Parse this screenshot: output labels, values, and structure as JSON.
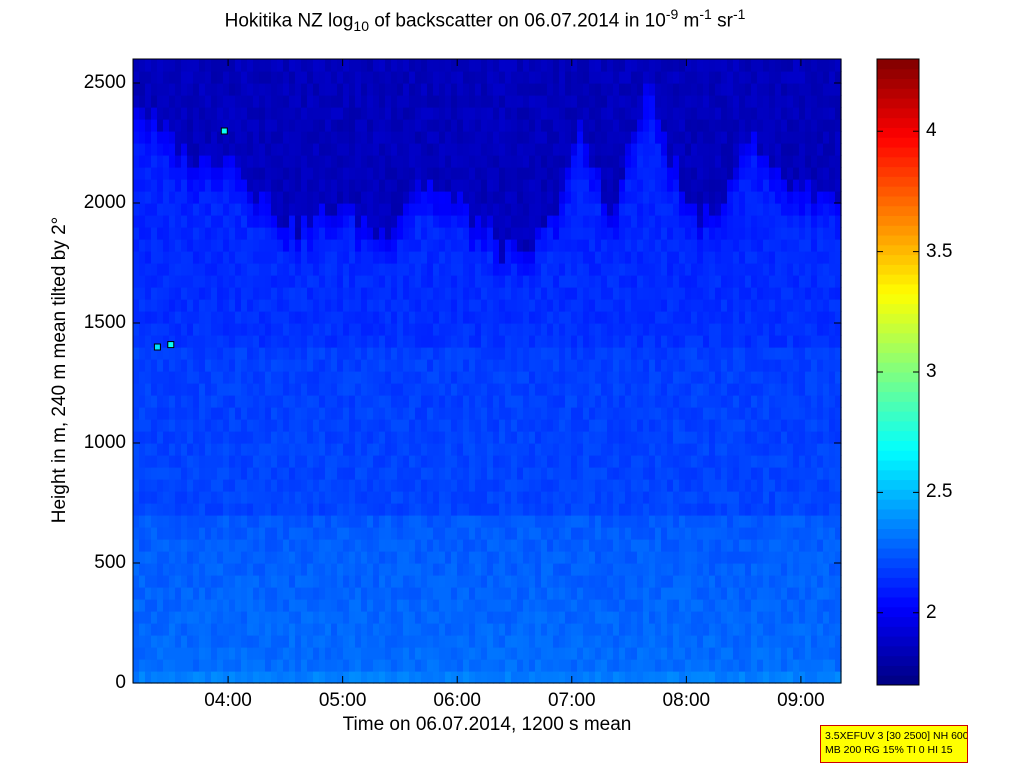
{
  "chart_data": {
    "type": "heatmap",
    "title": {
      "prefix": "Hokitika NZ log",
      "sub": "10",
      "middle": " of backscatter on 06.07.2014 in 10",
      "sup1": "-9",
      "unit_m": " m",
      "sup2": "-1",
      "unit_sr": " sr",
      "sup3": "-1"
    },
    "xlabel": "Time on 06.07.2014, 1200 s mean",
    "ylabel": "Height in m, 240 m mean tilted by 2°",
    "x_range_hours": [
      3.17,
      9.35
    ],
    "xticks": [
      "04:00",
      "05:00",
      "06:00",
      "07:00",
      "08:00",
      "09:00"
    ],
    "ylim": [
      0,
      2600
    ],
    "yticks": [
      "0",
      "500",
      "1000",
      "1500",
      "2000",
      "2500"
    ],
    "colorbar": {
      "range": [
        1.7,
        4.3
      ],
      "ticks": [
        "2",
        "2.5",
        "3",
        "3.5",
        "4"
      ],
      "colormap": "jet"
    },
    "cloud_top_profile_m": [
      {
        "time": "03:10",
        "top": 2450
      },
      {
        "time": "03:25",
        "top": 2300
      },
      {
        "time": "03:45",
        "top": 2150
      },
      {
        "time": "04:00",
        "top": 2250
      },
      {
        "time": "04:15",
        "top": 2050
      },
      {
        "time": "04:35",
        "top": 1900
      },
      {
        "time": "05:00",
        "top": 2000
      },
      {
        "time": "05:20",
        "top": 1850
      },
      {
        "time": "05:40",
        "top": 2100
      },
      {
        "time": "06:00",
        "top": 2000
      },
      {
        "time": "06:20",
        "top": 1850
      },
      {
        "time": "06:35",
        "top": 1750
      },
      {
        "time": "06:50",
        "top": 1950
      },
      {
        "time": "07:05",
        "top": 2300
      },
      {
        "time": "07:20",
        "top": 1950
      },
      {
        "time": "07:40",
        "top": 2500
      },
      {
        "time": "08:00",
        "top": 2000
      },
      {
        "time": "08:15",
        "top": 1900
      },
      {
        "time": "08:30",
        "top": 2300
      },
      {
        "time": "08:50",
        "top": 2100
      },
      {
        "time": "09:10",
        "top": 2050
      }
    ],
    "value_levels": {
      "free_troposphere": 1.85,
      "upper_layer": 2.15,
      "mid_layer": 2.2,
      "lower_layer": 2.3,
      "surface": 2.35
    },
    "markers": [
      {
        "time": "03:58",
        "height": 2300,
        "value": 2.7
      },
      {
        "time": "03:23",
        "height": 1400,
        "value": 2.6
      },
      {
        "time": "03:30",
        "height": 1410,
        "value": 2.7
      }
    ]
  },
  "info_box": {
    "line1": "3.5XEFUV 3 [30 2500] NH 600",
    "line2": "MB 200 RG 15% TI 0 HI 15"
  },
  "colors": {
    "frame": "#000000",
    "background": "#ffffff",
    "info_box_fill": "#ffff00",
    "info_box_border": "#cc0000"
  }
}
